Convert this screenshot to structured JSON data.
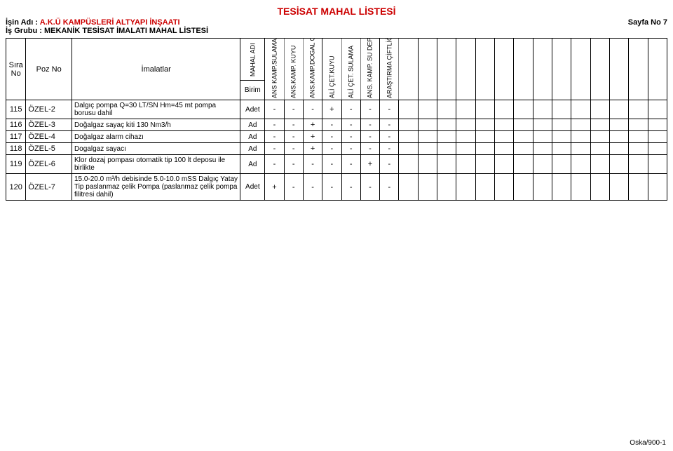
{
  "title": "TESİSAT MAHAL LİSTESİ",
  "job_label": "İşin Adı :",
  "job_name": "A.K.Ü KAMPÜSLERİ ALTYAPI İNŞAATI",
  "page_label": "Sayfa No 7",
  "group_label": "İş Grubu :",
  "group_name": "MEKANİK TESİSAT İMALATI MAHAL LİSTESİ",
  "headers": {
    "sira": "Sıra No",
    "poz": "Poz No",
    "imalat": "İmalatlar",
    "mahal_adi": "MAHAL ADI",
    "birim": "Birim"
  },
  "col_headers": [
    "ANS KAMP.SULAMA",
    "ANS.KAMP. KUYU",
    "ANS.KAMP.DOGAL GAZ",
    "ALİ ÇET.KUYU",
    "ALİ ÇET. SULAMA",
    "ANS. KAMP. SU DEPO",
    "ARAŞTIRMA ÇİFTLİĞİ"
  ],
  "rows": [
    {
      "sira": "115",
      "poz": "ÖZEL-2",
      "imalat": "Dalgıç pompa Q=30 LT/SN Hm=45 mt pompa borusu dahil",
      "birim": "Adet",
      "vals": [
        "-",
        "-",
        "-",
        "+",
        "-",
        "-",
        "-"
      ]
    },
    {
      "sira": "116",
      "poz": "ÖZEL-3",
      "imalat": "Doğalgaz sayaç kiti 130 Nm3/h",
      "birim": "Ad",
      "vals": [
        "-",
        "-",
        "+",
        "-",
        "-",
        "-",
        "-"
      ]
    },
    {
      "sira": "117",
      "poz": "ÖZEL-4",
      "imalat": "Doğalgaz alarm cihazı",
      "birim": "Ad",
      "vals": [
        "-",
        "-",
        "+",
        "-",
        "-",
        "-",
        "-"
      ]
    },
    {
      "sira": "118",
      "poz": "ÖZEL-5",
      "imalat": "Dogalgaz sayacı",
      "birim": "Ad",
      "vals": [
        "-",
        "-",
        "+",
        "-",
        "-",
        "-",
        "-"
      ]
    },
    {
      "sira": "119",
      "poz": "ÖZEL-6",
      "imalat": "Klor dozaj pompası otomatik tip 100 lt deposu ile birlikte",
      "birim": "Ad",
      "vals": [
        "-",
        "-",
        "-",
        "-",
        "-",
        "+",
        "-"
      ]
    },
    {
      "sira": "120",
      "poz": "ÖZEL-7",
      "imalat": "15.0-20.0 m³/h debisinde 5.0-10.0 mSS Dalgıç Yatay Tip paslanmaz çelik Pompa (paslanmaz çelik pompa filitresi dahil)",
      "birim": "Adet",
      "vals": [
        "+",
        "-",
        "-",
        "-",
        "-",
        "-",
        "-"
      ]
    }
  ],
  "empty_cols": 14,
  "footer": "Oska/900-1",
  "colors": {
    "title": "#cc0000",
    "text": "#000000",
    "bg": "#ffffff",
    "border": "#000000"
  }
}
